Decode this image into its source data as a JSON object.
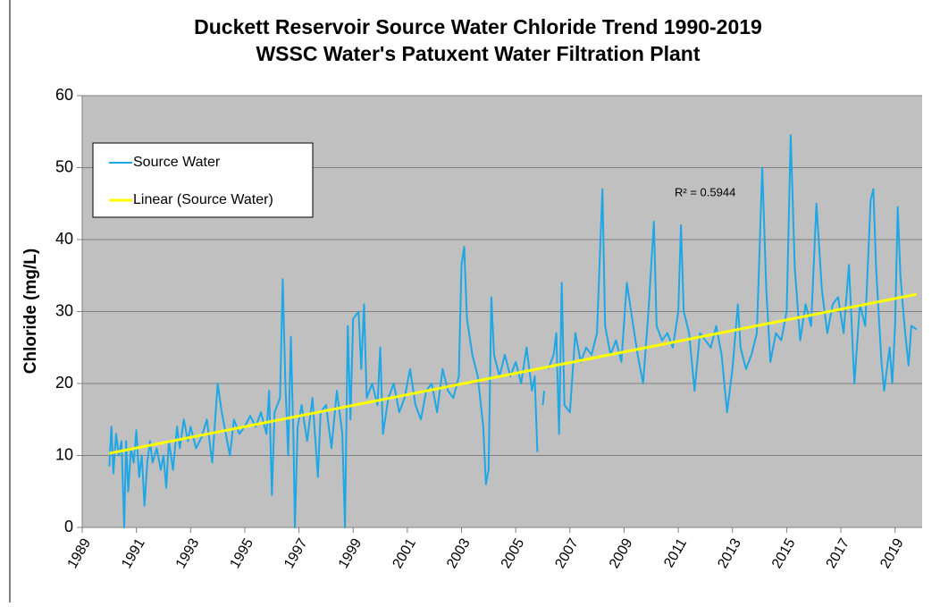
{
  "chart_data": {
    "type": "line",
    "title": "Duckett Reservoir Source Water Chloride Trend 1990-2019",
    "subtitle": "WSSC Water's Patuxent Water Filtration Plant",
    "y_label": "Chloride (mg/L)",
    "annotation": "R² = 0.5944",
    "xlim": [
      1989,
      2020
    ],
    "xticks": [
      1989,
      1991,
      1993,
      1995,
      1997,
      1999,
      2001,
      2003,
      2005,
      2007,
      2009,
      2011,
      2013,
      2015,
      2017,
      2019
    ],
    "ylim": [
      0,
      60
    ],
    "yticks": [
      0,
      10,
      20,
      30,
      40,
      50,
      60
    ],
    "grid": true,
    "legend": "upper-left",
    "series": [
      {
        "name": "Source Water",
        "color": "#1ea7e6",
        "x": [
          1990.0,
          1990.08,
          1990.15,
          1990.25,
          1990.35,
          1990.45,
          1990.55,
          1990.62,
          1990.7,
          1990.8,
          1990.9,
          1991.0,
          1991.1,
          1991.2,
          1991.3,
          1991.4,
          1991.5,
          1991.6,
          1991.75,
          1991.9,
          1992.0,
          1992.1,
          1992.2,
          1992.35,
          1992.5,
          1992.6,
          1992.75,
          1992.9,
          1993.0,
          1993.2,
          1993.4,
          1993.6,
          1993.8,
          1994.0,
          1994.15,
          1994.3,
          1994.45,
          1994.6,
          1994.8,
          1995.0,
          1995.2,
          1995.4,
          1995.6,
          1995.8,
          1995.9,
          1996.0,
          1996.1,
          1996.3,
          1996.4,
          1996.5,
          1996.6,
          1996.7,
          1996.8,
          1996.85,
          1996.95,
          1997.1,
          1997.3,
          1997.5,
          1997.7,
          1997.8,
          1998.0,
          1998.2,
          1998.4,
          1998.6,
          1998.7,
          1998.8,
          1998.9,
          1999.0,
          1999.2,
          1999.3,
          1999.4,
          1999.5,
          1999.7,
          1999.9,
          2000.0,
          2000.1,
          2000.3,
          2000.5,
          2000.7,
          2000.9,
          2001.1,
          2001.3,
          2001.5,
          2001.7,
          2001.9,
          2002.1,
          2002.3,
          2002.5,
          2002.7,
          2002.9,
          2003.0,
          2003.1,
          2003.2,
          2003.4,
          2003.6,
          2003.8,
          2003.9,
          2004.0,
          2004.1,
          2004.2,
          2004.4,
          2004.6,
          2004.8,
          2005.0,
          2005.2,
          2005.4,
          2005.6,
          2005.7,
          2005.8,
          2005.85,
          2006.0,
          2006.05,
          2006.1,
          2006.2,
          2006.4,
          2006.5,
          2006.6,
          2006.7,
          2006.8,
          2007.0,
          2007.2,
          2007.4,
          2007.6,
          2007.8,
          2008.0,
          2008.2,
          2008.3,
          2008.5,
          2008.7,
          2008.9,
          2009.1,
          2009.3,
          2009.5,
          2009.7,
          2009.9,
          2010.1,
          2010.2,
          2010.4,
          2010.6,
          2010.8,
          2011.0,
          2011.1,
          2011.2,
          2011.4,
          2011.6,
          2011.8,
          2012.0,
          2012.2,
          2012.4,
          2012.6,
          2012.8,
          2013.0,
          2013.2,
          2013.3,
          2013.5,
          2013.7,
          2013.9,
          2014.1,
          2014.25,
          2014.4,
          2014.6,
          2014.8,
          2015.0,
          2015.15,
          2015.3,
          2015.5,
          2015.7,
          2015.9,
          2016.1,
          2016.3,
          2016.5,
          2016.7,
          2016.9,
          2017.1,
          2017.3,
          2017.5,
          2017.7,
          2017.9,
          2018.1,
          2018.2,
          2018.3,
          2018.5,
          2018.6,
          2018.8,
          2018.9,
          2019.0,
          2019.1,
          2019.2,
          2019.35,
          2019.5,
          2019.6,
          2019.8
        ],
        "values": [
          8.5,
          14,
          7.5,
          13,
          10,
          12,
          0,
          12,
          5,
          11,
          9,
          13.5,
          7,
          10,
          3,
          9,
          12,
          9,
          11,
          8,
          10,
          5.5,
          12,
          8,
          14,
          11,
          15,
          12,
          14,
          11,
          12.5,
          15,
          9,
          20,
          16,
          13,
          10,
          15,
          13,
          14,
          15.5,
          14,
          16,
          13,
          19,
          4.5,
          16,
          18,
          34.5,
          20,
          10,
          26.5,
          12,
          0,
          14,
          17,
          12,
          18,
          7,
          16,
          17,
          11,
          19,
          13,
          0,
          28,
          15,
          29,
          30,
          22,
          31,
          18,
          20,
          17,
          25,
          13,
          18,
          20,
          16,
          18,
          22,
          17,
          15,
          19,
          20,
          16,
          22,
          19,
          18,
          21,
          36.5,
          39,
          29,
          24,
          21,
          14,
          6,
          8,
          32,
          24,
          21,
          24,
          21,
          23,
          20,
          25,
          19,
          21,
          10.5,
          null,
          17,
          19,
          null,
          22,
          24,
          27,
          13,
          34,
          17,
          16,
          27,
          23,
          25,
          24,
          27,
          47,
          28,
          24,
          26,
          23,
          34,
          29,
          24,
          20,
          30,
          42.5,
          28,
          26,
          27,
          25,
          30,
          42,
          30,
          27,
          19,
          27,
          26,
          25,
          28,
          24,
          16,
          22,
          31,
          25,
          22,
          24,
          27,
          50,
          33,
          23,
          27,
          26,
          30,
          54.5,
          36,
          26,
          31,
          28,
          45,
          33,
          27,
          31,
          32,
          27,
          36.5,
          20,
          31,
          28,
          45.5,
          47,
          36,
          23,
          19,
          25,
          20,
          28,
          44.5,
          35,
          28,
          22.5,
          28,
          27.5
        ]
      },
      {
        "name": "Linear (Source Water)",
        "color": "#ffff00",
        "x": [
          1990.0,
          2019.8
        ],
        "values": [
          10.3,
          32.4
        ]
      }
    ]
  }
}
